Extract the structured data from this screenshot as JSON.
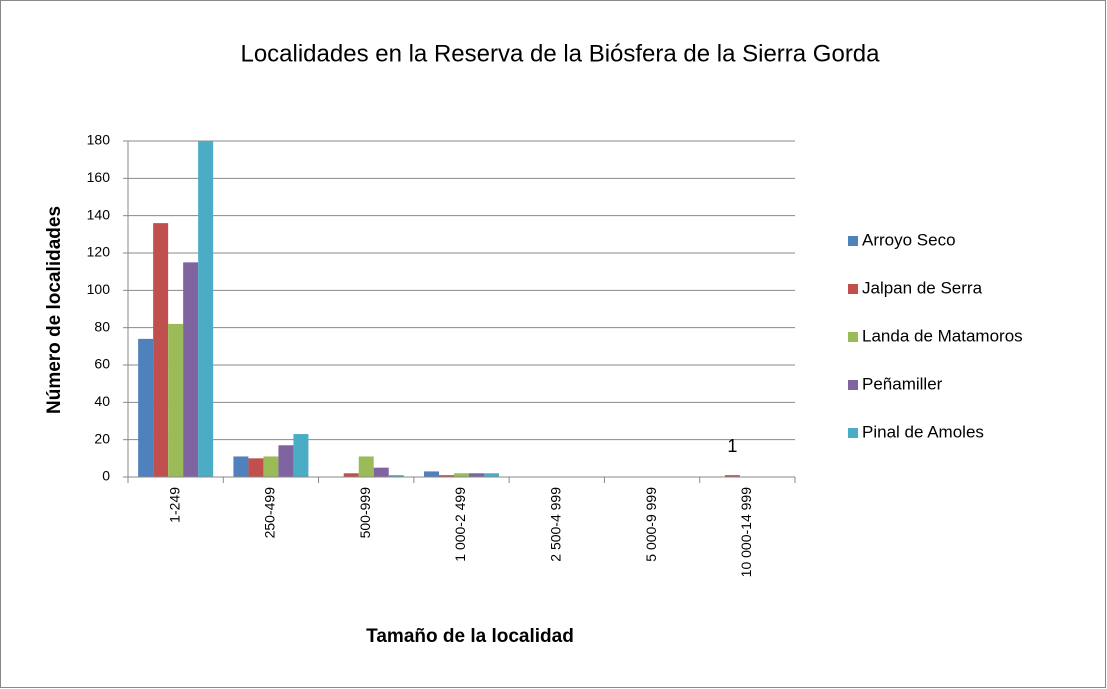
{
  "chart_data": {
    "type": "bar",
    "title": "Localidades en la Reserva de la Biósfera de la Sierra Gorda",
    "x_label": "Tamaño de la localidad",
    "y_label": "Número de localidades",
    "categories": [
      "1-249",
      "250-499",
      "500-999",
      "1 000-2 499",
      "2 500-4 999",
      "5 000-9 999",
      "10 000-14 999"
    ],
    "series": [
      {
        "name": "Arroyo Seco",
        "color": "#4f81bd",
        "values": [
          74,
          11,
          0,
          3,
          0,
          0,
          0
        ]
      },
      {
        "name": "Jalpan de Serra",
        "color": "#c0504d",
        "values": [
          136,
          10,
          2,
          1,
          0,
          0,
          1
        ],
        "value_labels": [
          null,
          null,
          null,
          null,
          null,
          null,
          "1"
        ]
      },
      {
        "name": "Landa de Matamoros",
        "color": "#9bbb59",
        "values": [
          82,
          11,
          11,
          2,
          0,
          0,
          0
        ]
      },
      {
        "name": "Peñamiller",
        "color": "#8064a2",
        "values": [
          115,
          17,
          5,
          2,
          0,
          0,
          0
        ]
      },
      {
        "name": "Pinal de Amoles",
        "color": "#4bacc6",
        "values": [
          180,
          23,
          1,
          2,
          0,
          0,
          0
        ]
      }
    ],
    "ylim": [
      0,
      180
    ],
    "yticks": [
      0,
      20,
      40,
      60,
      80,
      100,
      120,
      140,
      160,
      180
    ],
    "grid": true,
    "legend": "right"
  }
}
